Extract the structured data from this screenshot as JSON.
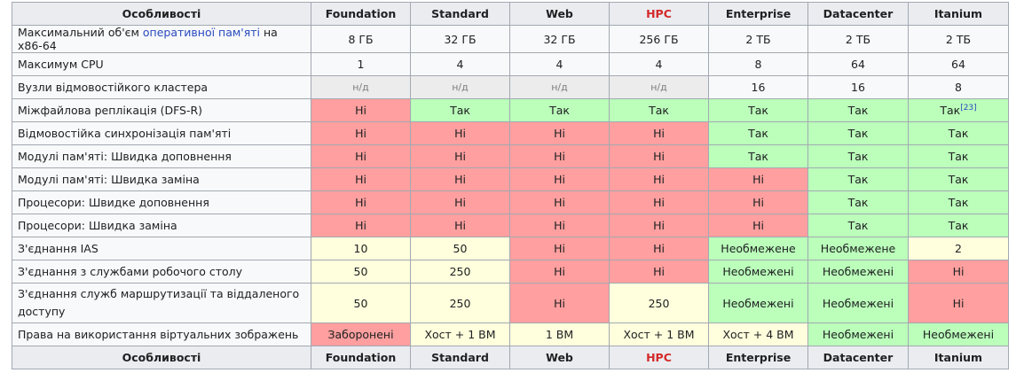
{
  "columns": [
    "Особливості",
    "Foundation",
    "Standard",
    "Web",
    "HPC",
    "Enterprise",
    "Datacenter",
    "Itanium"
  ],
  "colors": {
    "no": "#ff9f9f",
    "yes": "#bbffbb",
    "limited": "#ffffdd",
    "nd": "#ececec",
    "hpc_header": "#d42a2a",
    "link": "#2a4bbf"
  },
  "rows": [
    {
      "feature_pre": "Максимальний об'єм ",
      "feature_link": "оперативної пам'яті",
      "feature_post": " на x86-64",
      "cells": [
        {
          "v": "8 ГБ",
          "s": "plain"
        },
        {
          "v": "32 ГБ",
          "s": "plain"
        },
        {
          "v": "32 ГБ",
          "s": "plain"
        },
        {
          "v": "256 ГБ",
          "s": "plain"
        },
        {
          "v": "2 ТБ",
          "s": "plain"
        },
        {
          "v": "2 ТБ",
          "s": "plain"
        },
        {
          "v": "2 ТБ",
          "s": "plain"
        }
      ]
    },
    {
      "feature": "Максимум CPU",
      "cells": [
        {
          "v": "1",
          "s": "plain"
        },
        {
          "v": "4",
          "s": "plain"
        },
        {
          "v": "4",
          "s": "plain"
        },
        {
          "v": "4",
          "s": "plain"
        },
        {
          "v": "8",
          "s": "plain"
        },
        {
          "v": "64",
          "s": "plain"
        },
        {
          "v": "64",
          "s": "plain"
        }
      ]
    },
    {
      "feature": "Вузли відмовостійкого кластера",
      "cells": [
        {
          "v": "н/д",
          "s": "nd"
        },
        {
          "v": "н/д",
          "s": "nd"
        },
        {
          "v": "н/д",
          "s": "nd"
        },
        {
          "v": "н/д",
          "s": "nd"
        },
        {
          "v": "16",
          "s": "plain"
        },
        {
          "v": "16",
          "s": "plain"
        },
        {
          "v": "8",
          "s": "plain"
        }
      ]
    },
    {
      "feature": "Міжфайлова реплікація (DFS-R)",
      "cells": [
        {
          "v": "Ні",
          "s": "no"
        },
        {
          "v": "Так",
          "s": "yes"
        },
        {
          "v": "Так",
          "s": "yes"
        },
        {
          "v": "Так",
          "s": "yes"
        },
        {
          "v": "Так",
          "s": "yes"
        },
        {
          "v": "Так",
          "s": "yes"
        },
        {
          "v": "Так",
          "s": "yes",
          "sup": "[23]"
        }
      ]
    },
    {
      "feature": "Відмовостійка синхронізація пам'яті",
      "cells": [
        {
          "v": "Ні",
          "s": "no"
        },
        {
          "v": "Ні",
          "s": "no"
        },
        {
          "v": "Ні",
          "s": "no"
        },
        {
          "v": "Ні",
          "s": "no"
        },
        {
          "v": "Так",
          "s": "yes"
        },
        {
          "v": "Так",
          "s": "yes"
        },
        {
          "v": "Так",
          "s": "yes"
        }
      ]
    },
    {
      "feature": "Модулі пам'яті: Швидка доповнення",
      "cells": [
        {
          "v": "Ні",
          "s": "no"
        },
        {
          "v": "Ні",
          "s": "no"
        },
        {
          "v": "Ні",
          "s": "no"
        },
        {
          "v": "Ні",
          "s": "no"
        },
        {
          "v": "Так",
          "s": "yes"
        },
        {
          "v": "Так",
          "s": "yes"
        },
        {
          "v": "Так",
          "s": "yes"
        }
      ]
    },
    {
      "feature": "Модулі пам'яті: Швидка заміна",
      "cells": [
        {
          "v": "Ні",
          "s": "no"
        },
        {
          "v": "Ні",
          "s": "no"
        },
        {
          "v": "Ні",
          "s": "no"
        },
        {
          "v": "Ні",
          "s": "no"
        },
        {
          "v": "Ні",
          "s": "no"
        },
        {
          "v": "Так",
          "s": "yes"
        },
        {
          "v": "Так",
          "s": "yes"
        }
      ]
    },
    {
      "feature": "Процесори: Швидке доповнення",
      "cells": [
        {
          "v": "Ні",
          "s": "no"
        },
        {
          "v": "Ні",
          "s": "no"
        },
        {
          "v": "Ні",
          "s": "no"
        },
        {
          "v": "Ні",
          "s": "no"
        },
        {
          "v": "Ні",
          "s": "no"
        },
        {
          "v": "Так",
          "s": "yes"
        },
        {
          "v": "Так",
          "s": "yes"
        }
      ]
    },
    {
      "feature": "Процесори: Швидка заміна",
      "cells": [
        {
          "v": "Ні",
          "s": "no"
        },
        {
          "v": "Ні",
          "s": "no"
        },
        {
          "v": "Ні",
          "s": "no"
        },
        {
          "v": "Ні",
          "s": "no"
        },
        {
          "v": "Ні",
          "s": "no"
        },
        {
          "v": "Так",
          "s": "yes"
        },
        {
          "v": "Так",
          "s": "yes"
        }
      ]
    },
    {
      "feature": "З'єднання IAS",
      "cells": [
        {
          "v": "10",
          "s": "lim"
        },
        {
          "v": "50",
          "s": "lim"
        },
        {
          "v": "Ні",
          "s": "no"
        },
        {
          "v": "Ні",
          "s": "no"
        },
        {
          "v": "Необмежене",
          "s": "yes"
        },
        {
          "v": "Необмежене",
          "s": "yes"
        },
        {
          "v": "2",
          "s": "lim"
        }
      ]
    },
    {
      "feature": "З'єднання з службами робочого столу",
      "cells": [
        {
          "v": "50",
          "s": "lim"
        },
        {
          "v": "250",
          "s": "lim"
        },
        {
          "v": "Ні",
          "s": "no"
        },
        {
          "v": "Ні",
          "s": "no"
        },
        {
          "v": "Необмежені",
          "s": "yes"
        },
        {
          "v": "Необмежені",
          "s": "yes"
        },
        {
          "v": "Ні",
          "s": "no"
        }
      ]
    },
    {
      "feature": "З'єднання служб маршрутизації та віддаленого доступу",
      "tall": true,
      "cells": [
        {
          "v": "50",
          "s": "lim"
        },
        {
          "v": "250",
          "s": "lim"
        },
        {
          "v": "Ні",
          "s": "no"
        },
        {
          "v": "250",
          "s": "lim"
        },
        {
          "v": "Необмежені",
          "s": "yes"
        },
        {
          "v": "Необмежені",
          "s": "yes"
        },
        {
          "v": "Ні",
          "s": "no"
        }
      ]
    },
    {
      "feature": "Права на використання віртуальних зображень",
      "cells": [
        {
          "v": "Заборонені",
          "s": "no"
        },
        {
          "v": "Хост + 1 ВМ",
          "s": "lim"
        },
        {
          "v": "1 ВМ",
          "s": "lim"
        },
        {
          "v": "Хост + 1 ВМ",
          "s": "lim"
        },
        {
          "v": "Хост + 4 ВМ",
          "s": "lim"
        },
        {
          "v": "Необмежені",
          "s": "yes"
        },
        {
          "v": "Необмежені",
          "s": "yes"
        }
      ]
    }
  ]
}
